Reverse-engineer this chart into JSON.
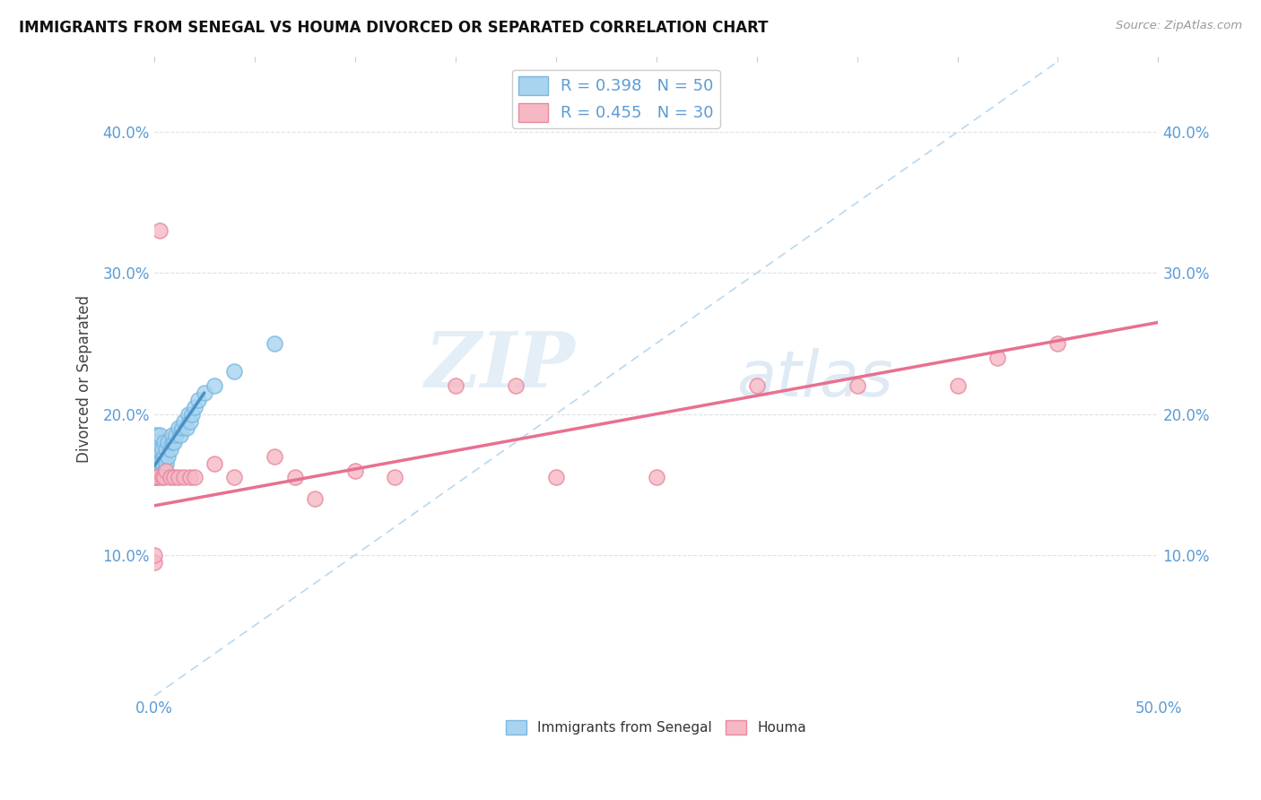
{
  "title": "IMMIGRANTS FROM SENEGAL VS HOUMA DIVORCED OR SEPARATED CORRELATION CHART",
  "source": "Source: ZipAtlas.com",
  "ylabel": "Divorced or Separated",
  "xlim": [
    0.0,
    0.5
  ],
  "ylim": [
    0.0,
    0.45
  ],
  "xticks": [
    0.0,
    0.05,
    0.1,
    0.15,
    0.2,
    0.25,
    0.3,
    0.35,
    0.4,
    0.45,
    0.5
  ],
  "yticks": [
    0.0,
    0.1,
    0.2,
    0.3,
    0.4
  ],
  "ytick_labels": [
    "",
    "10.0%",
    "20.0%",
    "30.0%",
    "40.0%"
  ],
  "xtick_labels": [
    "0.0%",
    "",
    "",
    "",
    "",
    "",
    "",
    "",
    "",
    "",
    "50.0%"
  ],
  "right_ytick_labels": [
    "",
    "10.0%",
    "20.0%",
    "30.0%",
    "40.0%"
  ],
  "legend_R1": "R = 0.398",
  "legend_N1": "N = 50",
  "legend_R2": "R = 0.455",
  "legend_N2": "N = 30",
  "series1_color": "#a8d4f0",
  "series2_color": "#f5b8c4",
  "series1_edge": "#7ab8e0",
  "series2_edge": "#e88aa0",
  "trendline1_color": "#4a90c4",
  "trendline2_color": "#e87090",
  "diagonal_color": "#b8d8f0",
  "watermark_zip": "ZIP",
  "watermark_atlas": "atlas",
  "background_color": "#ffffff",
  "grid_color": "#e0e0e0",
  "series1_x": [
    0.0,
    0.0,
    0.0,
    0.0,
    0.0,
    0.0,
    0.001,
    0.001,
    0.001,
    0.001,
    0.001,
    0.001,
    0.001,
    0.002,
    0.002,
    0.002,
    0.002,
    0.002,
    0.003,
    0.003,
    0.003,
    0.003,
    0.004,
    0.004,
    0.005,
    0.005,
    0.005,
    0.006,
    0.006,
    0.007,
    0.007,
    0.008,
    0.009,
    0.009,
    0.01,
    0.011,
    0.012,
    0.013,
    0.014,
    0.015,
    0.016,
    0.017,
    0.018,
    0.019,
    0.02,
    0.022,
    0.025,
    0.03,
    0.04,
    0.06
  ],
  "series1_y": [
    0.155,
    0.16,
    0.165,
    0.17,
    0.175,
    0.18,
    0.155,
    0.16,
    0.165,
    0.17,
    0.175,
    0.18,
    0.185,
    0.16,
    0.165,
    0.17,
    0.175,
    0.18,
    0.16,
    0.165,
    0.175,
    0.185,
    0.165,
    0.175,
    0.16,
    0.17,
    0.18,
    0.165,
    0.175,
    0.17,
    0.18,
    0.175,
    0.18,
    0.185,
    0.18,
    0.185,
    0.19,
    0.185,
    0.19,
    0.195,
    0.19,
    0.2,
    0.195,
    0.2,
    0.205,
    0.21,
    0.215,
    0.22,
    0.23,
    0.25
  ],
  "series2_x": [
    0.0,
    0.0,
    0.001,
    0.002,
    0.003,
    0.004,
    0.005,
    0.006,
    0.008,
    0.01,
    0.012,
    0.015,
    0.018,
    0.02,
    0.03,
    0.04,
    0.06,
    0.07,
    0.08,
    0.1,
    0.12,
    0.15,
    0.18,
    0.2,
    0.25,
    0.3,
    0.35,
    0.4,
    0.42,
    0.45
  ],
  "series2_y": [
    0.095,
    0.1,
    0.155,
    0.155,
    0.33,
    0.155,
    0.155,
    0.16,
    0.155,
    0.155,
    0.155,
    0.155,
    0.155,
    0.155,
    0.165,
    0.155,
    0.17,
    0.155,
    0.14,
    0.16,
    0.155,
    0.22,
    0.22,
    0.155,
    0.155,
    0.22,
    0.22,
    0.22,
    0.24,
    0.25
  ],
  "trendline1_x": [
    0.0,
    0.025
  ],
  "trendline1_y_start": 0.163,
  "trendline1_y_end": 0.215,
  "trendline2_x": [
    0.0,
    0.5
  ],
  "trendline2_y_start": 0.135,
  "trendline2_y_end": 0.265
}
